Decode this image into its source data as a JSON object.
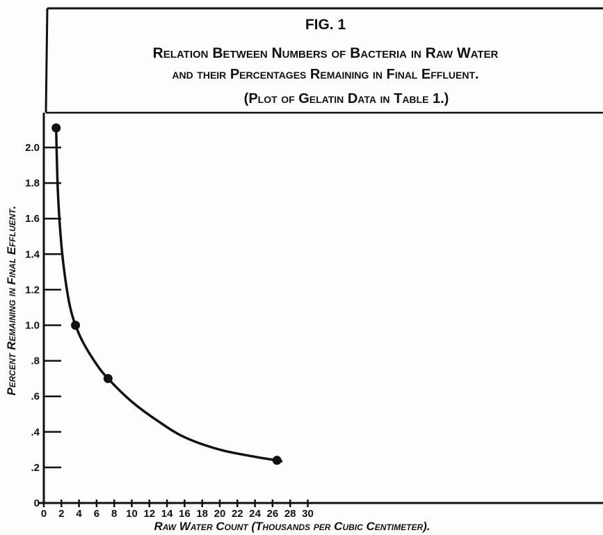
{
  "figure": {
    "fig_label": "FIG. 1",
    "title_lines": [
      "Relation Between Numbers of Bacteria in Raw Water",
      "and their Percentages Remaining in Final Effluent.",
      "(Plot of Gelatin Data in Table 1.)"
    ]
  },
  "chart_data": {
    "type": "line",
    "title": "Relation Between Numbers of Bacteria in Raw Water and their Percentages Remaining in Final Effluent.",
    "subtitle": "(Plot of Gelatin Data in Table 1.)",
    "xlabel": "Raw Water Count (Thousands per Cubic Centimeter).",
    "ylabel": "Percent Remaining in Final Effluent.",
    "xlim": [
      0,
      31
    ],
    "ylim": [
      0,
      2.2
    ],
    "x_ticks": [
      0,
      2,
      4,
      6,
      8,
      10,
      12,
      14,
      16,
      18,
      20,
      22,
      24,
      26,
      28,
      30
    ],
    "x_tick_labels": [
      "0",
      "2",
      "4",
      "6",
      "8",
      "10",
      "12",
      "14",
      "16",
      "18",
      "20",
      "22",
      "24",
      "26",
      "28",
      "30"
    ],
    "y_ticks": [
      0,
      0.2,
      0.4,
      0.6,
      0.8,
      1.0,
      1.2,
      1.4,
      1.6,
      1.8,
      2.0
    ],
    "y_tick_labels": [
      "0",
      ".2",
      ".4",
      ".6",
      ".8",
      "1.0",
      "1.2",
      "1.4",
      "1.6",
      "1.8",
      "2.0"
    ],
    "grid": false,
    "series": [
      {
        "points": [
          {
            "x": 1.4,
            "y": 2.11
          },
          {
            "x": 3.6,
            "y": 1.0
          },
          {
            "x": 7.3,
            "y": 0.7
          },
          {
            "x": 26.5,
            "y": 0.24
          }
        ],
        "curve": [
          {
            "x": 1.4,
            "y": 2.11
          },
          {
            "x": 1.6,
            "y": 1.75
          },
          {
            "x": 2.0,
            "y": 1.45
          },
          {
            "x": 2.5,
            "y": 1.24
          },
          {
            "x": 3.0,
            "y": 1.1
          },
          {
            "x": 3.6,
            "y": 1.0
          },
          {
            "x": 4.5,
            "y": 0.9
          },
          {
            "x": 6.0,
            "y": 0.78
          },
          {
            "x": 7.3,
            "y": 0.7
          },
          {
            "x": 10.0,
            "y": 0.57
          },
          {
            "x": 13.0,
            "y": 0.46
          },
          {
            "x": 16.0,
            "y": 0.37
          },
          {
            "x": 20.0,
            "y": 0.3
          },
          {
            "x": 24.0,
            "y": 0.26
          },
          {
            "x": 26.5,
            "y": 0.24
          },
          {
            "x": 27.0,
            "y": 0.235
          }
        ]
      }
    ]
  }
}
